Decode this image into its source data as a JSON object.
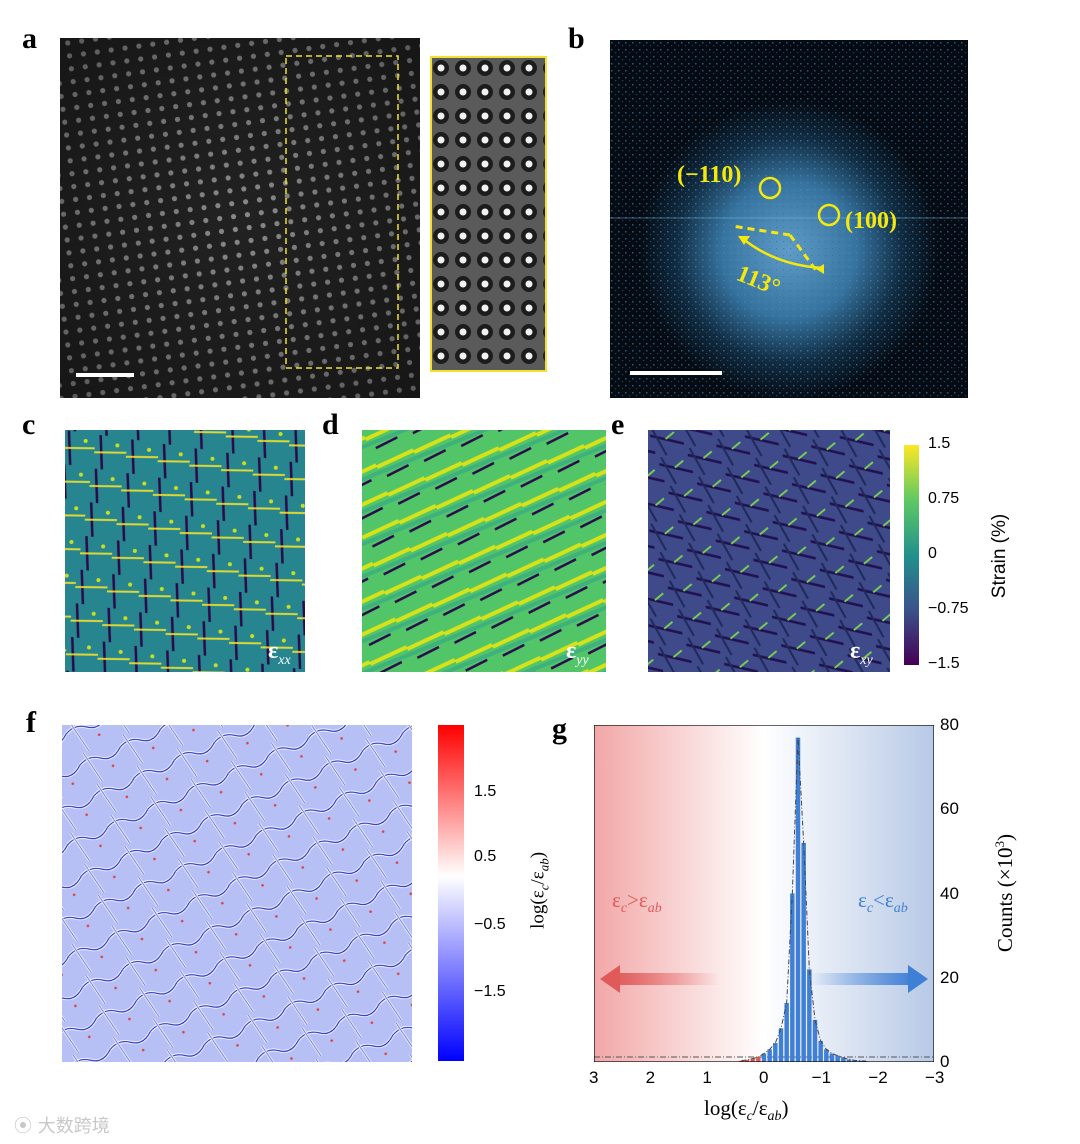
{
  "panels": {
    "a": {
      "label": "a"
    },
    "b": {
      "label": "b",
      "spots": [
        "(−110)",
        "(100)"
      ],
      "angle": "113°"
    },
    "c": {
      "label": "c",
      "component": "ε",
      "sub": "xx"
    },
    "d": {
      "label": "d",
      "component": "ε",
      "sub": "yy"
    },
    "e": {
      "label": "e",
      "component": "ε",
      "sub": "xy"
    },
    "f": {
      "label": "f"
    },
    "g": {
      "label": "g"
    }
  },
  "strain_colorbar": {
    "title": "Strain (%)",
    "ticks": [
      "1.5",
      "0.75",
      "0",
      "−0.75",
      "−1.5"
    ],
    "colors": [
      "#fde725",
      "#5ec962",
      "#21918c",
      "#3b528b",
      "#440154"
    ]
  },
  "ratio_colorbar": {
    "title_main": "log(ε",
    "title_sub1": "c",
    "title_sep": "/ε",
    "title_sub2": "ab",
    "title_end": ")",
    "ticks": [
      "1.5",
      "0.5",
      "−0.5",
      "−1.5"
    ],
    "colors": [
      "#ff0000",
      "#ffffff",
      "#0000ff"
    ]
  },
  "chart_data": {
    "type": "bar",
    "title": "",
    "xlabel_main": "log(ε",
    "xlabel_sub1": "c",
    "xlabel_sep": "/ε",
    "xlabel_sub2": "ab",
    "xlabel_end": ")",
    "ylabel": "Counts (×10",
    "ylabel_sup": "3",
    "ylabel_end": ")",
    "xlim": [
      3,
      -3
    ],
    "ylim": [
      0,
      80
    ],
    "x_ticks": [
      "3",
      "2",
      "1",
      "0",
      "−1",
      "−2",
      "−3"
    ],
    "x_tick_values": [
      3,
      2,
      1,
      0,
      -1,
      -2,
      -3
    ],
    "y_ticks": [
      "0",
      "20",
      "40",
      "60",
      "80"
    ],
    "y_tick_values": [
      0,
      20,
      40,
      60,
      80
    ],
    "bin_centers": [
      0.4,
      0.3,
      0.2,
      0.1,
      0.0,
      -0.1,
      -0.2,
      -0.3,
      -0.4,
      -0.5,
      -0.6,
      -0.7,
      -0.8,
      -0.9,
      -1.0,
      -1.1,
      -1.2,
      -1.3,
      -1.4,
      -1.5,
      -1.6,
      -1.7,
      -1.8
    ],
    "values": [
      0.3,
      0.5,
      0.8,
      1.2,
      2.0,
      3.0,
      4.5,
      8.0,
      14.0,
      40.0,
      77.0,
      52.0,
      22.0,
      10.0,
      5.0,
      3.0,
      2.0,
      1.5,
      1.0,
      0.6,
      0.4,
      0.3,
      0.2
    ],
    "bar_colors": {
      "positive": "#e05a5a",
      "negative": "#3f7fd6"
    },
    "annotations": {
      "left": {
        "main": "ε",
        "sub1": "c",
        "op": ">ε",
        "sub2": "ab",
        "color": "#e05a5a"
      },
      "right": {
        "main": "ε",
        "sub1": "c",
        "op": "<ε",
        "sub2": "ab",
        "color": "#3f7fd6"
      }
    }
  },
  "watermark": "大数跨境"
}
